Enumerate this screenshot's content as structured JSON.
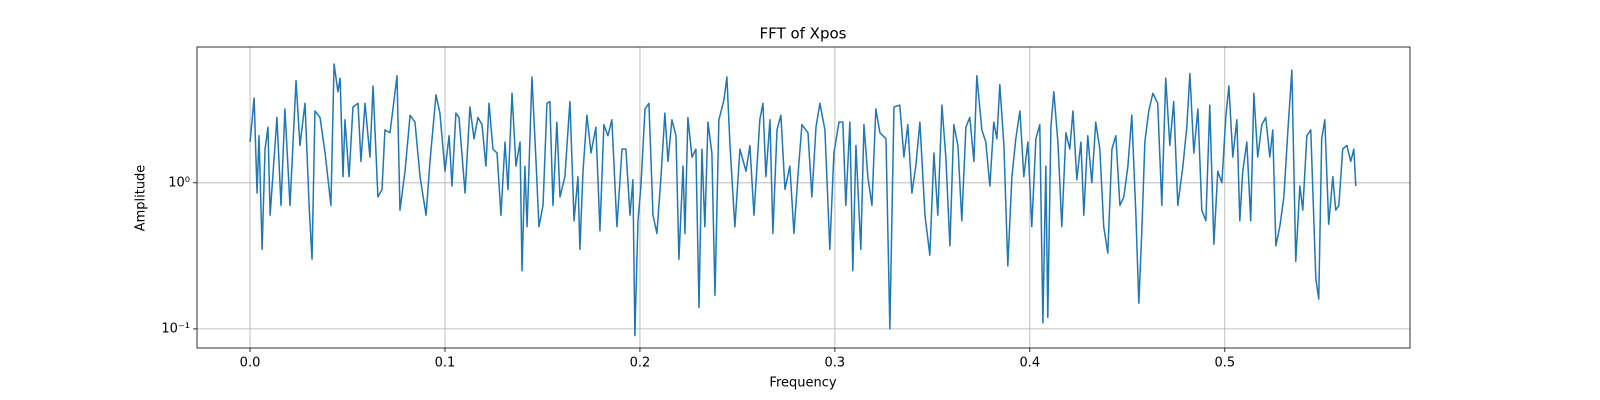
{
  "chart_data": {
    "type": "line",
    "title": "FFT of Xpos",
    "x_label": "Frequency",
    "y_label": "Amplitude",
    "color": "#1f77b4",
    "yscale": "log",
    "grid": true,
    "xlim": [
      -0.0272,
      0.595
    ],
    "ylim": [
      0.074,
      8.5
    ],
    "xticks": [
      {
        "value": 0,
        "label": "0.0"
      },
      0.1,
      0.2,
      0.3,
      0.4,
      0.5
    ],
    "yticks": [
      {
        "value": 0.1,
        "label": "10⁻¹"
      },
      {
        "value": 1,
        "label": "10⁰"
      }
    ],
    "x": [
      0,
      0.0021,
      0.0036,
      0.0046,
      0.0062,
      0.0077,
      0.0092,
      0.0103,
      0.0138,
      0.0159,
      0.0179,
      0.0205,
      0.0236,
      0.0256,
      0.0282,
      0.0303,
      0.0318,
      0.0333,
      0.0359,
      0.0385,
      0.0415,
      0.0431,
      0.0451,
      0.0462,
      0.0477,
      0.0487,
      0.0508,
      0.0528,
      0.0554,
      0.0569,
      0.059,
      0.0615,
      0.0631,
      0.0656,
      0.0677,
      0.0692,
      0.0718,
      0.0754,
      0.0769,
      0.0795,
      0.0821,
      0.0846,
      0.0872,
      0.0903,
      0.0923,
      0.0954,
      0.0974,
      0.1,
      0.1021,
      0.1036,
      0.1056,
      0.1072,
      0.1103,
      0.1128,
      0.1149,
      0.1169,
      0.119,
      0.121,
      0.1226,
      0.1246,
      0.1267,
      0.1287,
      0.1308,
      0.1323,
      0.1344,
      0.1364,
      0.1385,
      0.1395,
      0.141,
      0.1421,
      0.1446,
      0.1467,
      0.1482,
      0.1503,
      0.1523,
      0.1538,
      0.1554,
      0.1574,
      0.159,
      0.1615,
      0.1641,
      0.1662,
      0.1682,
      0.1692,
      0.1708,
      0.1728,
      0.1749,
      0.1774,
      0.1795,
      0.1815,
      0.1836,
      0.1856,
      0.1882,
      0.1908,
      0.1928,
      0.1949,
      0.1964,
      0.1974,
      0.199,
      0.2005,
      0.2026,
      0.2046,
      0.2067,
      0.2087,
      0.2108,
      0.2128,
      0.2144,
      0.2164,
      0.2185,
      0.22,
      0.2221,
      0.2231,
      0.2246,
      0.2267,
      0.2287,
      0.2303,
      0.2318,
      0.2333,
      0.2349,
      0.2369,
      0.2385,
      0.2405,
      0.2431,
      0.2446,
      0.2462,
      0.2487,
      0.2513,
      0.2544,
      0.2564,
      0.2585,
      0.2615,
      0.2631,
      0.2646,
      0.2667,
      0.2682,
      0.2703,
      0.2723,
      0.2744,
      0.2769,
      0.279,
      0.281,
      0.2831,
      0.2862,
      0.2882,
      0.2903,
      0.2923,
      0.2949,
      0.2974,
      0.2995,
      0.3021,
      0.3041,
      0.3056,
      0.3077,
      0.3092,
      0.3108,
      0.3133,
      0.3149,
      0.3169,
      0.319,
      0.321,
      0.3231,
      0.3262,
      0.3282,
      0.3303,
      0.3333,
      0.3354,
      0.3374,
      0.3395,
      0.3415,
      0.3436,
      0.3462,
      0.3487,
      0.3508,
      0.3528,
      0.3549,
      0.3569,
      0.359,
      0.361,
      0.3631,
      0.3651,
      0.3672,
      0.3692,
      0.3713,
      0.3728,
      0.3754,
      0.3774,
      0.3795,
      0.3815,
      0.3831,
      0.3846,
      0.3867,
      0.3887,
      0.3908,
      0.3928,
      0.3949,
      0.3969,
      0.399,
      0.401,
      0.4031,
      0.4051,
      0.4067,
      0.4082,
      0.4092,
      0.4108,
      0.4123,
      0.4144,
      0.4164,
      0.4185,
      0.4205,
      0.4221,
      0.4241,
      0.4262,
      0.4277,
      0.4297,
      0.4318,
      0.4338,
      0.4359,
      0.4379,
      0.44,
      0.4421,
      0.4441,
      0.4462,
      0.4482,
      0.4503,
      0.4523,
      0.4544,
      0.4559,
      0.4574,
      0.459,
      0.461,
      0.4631,
      0.4656,
      0.4677,
      0.4697,
      0.4718,
      0.4738,
      0.4759,
      0.4785,
      0.4805,
      0.4821,
      0.4841,
      0.4862,
      0.4882,
      0.4903,
      0.4923,
      0.4944,
      0.4964,
      0.4985,
      0.5005,
      0.5021,
      0.5041,
      0.5062,
      0.5077,
      0.5092,
      0.5113,
      0.5133,
      0.5149,
      0.5169,
      0.519,
      0.521,
      0.5231,
      0.5246,
      0.5262,
      0.5282,
      0.5303,
      0.5323,
      0.5344,
      0.5364,
      0.5385,
      0.54,
      0.5421,
      0.5441,
      0.5467,
      0.5482,
      0.5497,
      0.5513,
      0.5533,
      0.5554,
      0.5569,
      0.5585,
      0.5605,
      0.5626,
      0.5646,
      0.5662,
      0.5672
    ],
    "values": [
      1.9,
      3.8,
      0.85,
      2.1,
      0.35,
      1.7,
      2.4,
      0.6,
      2.8,
      0.7,
      3.2,
      0.7,
      5,
      1.8,
      3.5,
      0.7,
      0.3,
      3.1,
      2.8,
      1.6,
      0.7,
      6.5,
      4.2,
      5.2,
      1.1,
      2.7,
      1.1,
      3.3,
      3.5,
      1.4,
      3.5,
      1.5,
      4.6,
      0.8,
      0.9,
      2.3,
      2.2,
      5.4,
      0.65,
      1.2,
      2.9,
      2.6,
      1.1,
      0.6,
      1.4,
      4,
      3,
      1.2,
      2.1,
      0.95,
      3,
      2.8,
      0.85,
      3.3,
      2,
      2.8,
      2.5,
      1.3,
      3.5,
      1.7,
      1.6,
      0.6,
      1.9,
      0.9,
      4.1,
      1.3,
      1.9,
      0.25,
      1.3,
      0.5,
      5.3,
      1.4,
      0.5,
      0.7,
      3.5,
      3.6,
      0.7,
      2.6,
      0.8,
      1.1,
      3.6,
      0.55,
      1.1,
      0.35,
      1.2,
      2.9,
      1.6,
      2.4,
      0.47,
      2.5,
      2.1,
      2.7,
      0.5,
      1.7,
      1.7,
      0.6,
      1.05,
      0.09,
      0.55,
      0.95,
      3.2,
      3.5,
      0.6,
      0.45,
      1.1,
      3,
      1.4,
      2.7,
      2.1,
      0.3,
      1.3,
      0.45,
      2.8,
      1.5,
      1.7,
      0.14,
      1.7,
      0.5,
      2.6,
      1.6,
      0.17,
      2.7,
      3.7,
      5.3,
      1.8,
      0.5,
      1.7,
      1.2,
      1.8,
      0.6,
      2.7,
      3.5,
      1.1,
      2.7,
      0.45,
      2.3,
      2.9,
      0.9,
      1.3,
      0.45,
      1.1,
      2.5,
      2.2,
      0.8,
      2.4,
      3.5,
      2.3,
      0.35,
      1.6,
      2.6,
      2.6,
      0.7,
      2.6,
      0.25,
      1.8,
      0.35,
      2.5,
      1.1,
      0.7,
      3.2,
      2.2,
      2,
      0.1,
      3.3,
      3.4,
      1.5,
      2.5,
      0.85,
      1.3,
      2.6,
      0.6,
      0.32,
      1.6,
      0.6,
      3.4,
      1.5,
      0.37,
      2.5,
      1.8,
      0.55,
      2.4,
      2.8,
      1.4,
      5.4,
      2.3,
      1.9,
      0.95,
      2.6,
      2,
      4.7,
      1.8,
      0.27,
      1.1,
      2,
      3.1,
      1.1,
      1.9,
      0.5,
      2,
      2.5,
      0.11,
      1.3,
      0.12,
      2.4,
      4.2,
      1.9,
      0.5,
      2.2,
      1.7,
      3.1,
      1.05,
      1.9,
      0.6,
      2.1,
      1,
      2.6,
      1.7,
      0.5,
      0.33,
      1.7,
      2.1,
      0.7,
      0.8,
      1.3,
      2.9,
      0.6,
      0.15,
      0.45,
      1.9,
      3.1,
      4.1,
      3.5,
      0.7,
      5.2,
      1.8,
      3.6,
      0.7,
      1.3,
      2.4,
      5.6,
      1.6,
      3.2,
      0.65,
      0.55,
      3.4,
      0.38,
      1.2,
      1,
      2.8,
      4.6,
      1.5,
      2.7,
      0.55,
      1.2,
      1.9,
      0.55,
      4.1,
      1.5,
      2.5,
      2.8,
      1.5,
      2.3,
      0.37,
      0.5,
      0.8,
      2.2,
      5.9,
      0.29,
      0.95,
      0.65,
      2.1,
      2.3,
      0.22,
      0.16,
      2,
      2.7,
      0.52,
      1.1,
      0.65,
      0.7,
      1.7,
      1.8,
      1.4,
      1.7,
      0.95
    ]
  }
}
